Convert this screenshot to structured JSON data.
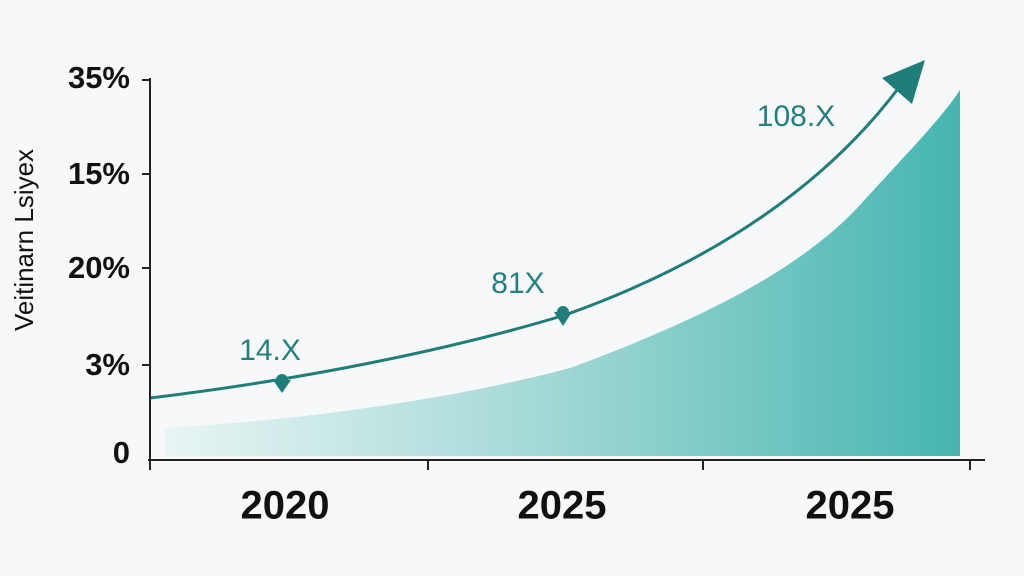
{
  "axis_title": "Veitinarn Lsiyex",
  "y_axis_labels": [
    "35%",
    "15%",
    "20%",
    "3%",
    "0"
  ],
  "x_axis_labels": [
    "2020",
    "2025",
    "2025"
  ],
  "annotations": [
    "14.X",
    "81X",
    "108.X"
  ]
}
